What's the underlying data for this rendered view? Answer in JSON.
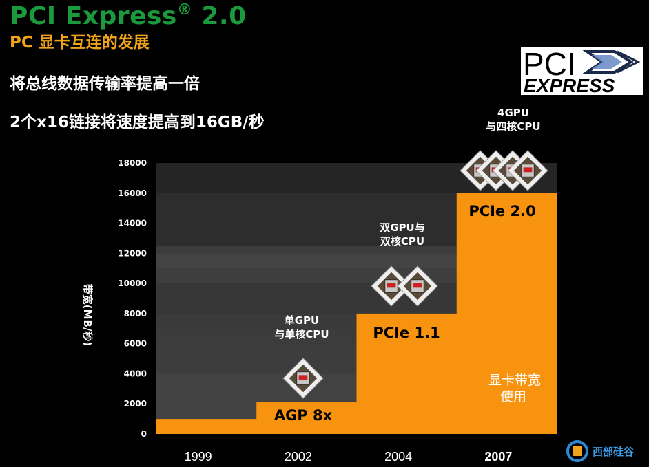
{
  "header": {
    "title": "PCI Express",
    "title_mark": "®",
    "title_version": " 2.0",
    "subtitle_prefix": "PC",
    "subtitle": " 显卡互连的发展",
    "bullet_1": "将总线数据传输率提高一倍",
    "bullet_2": "2个x16链接将速度提高到16GB/秒"
  },
  "logo": {
    "line1": "PCI",
    "line2": "EXPRESS",
    "icon": "pci-express-chevron-icon"
  },
  "watermark": {
    "text": "西部硅谷",
    "icon": "chip-logo-icon"
  },
  "colors": {
    "title": "#1a9a3c",
    "subtitle": "#f0a21a",
    "bar": "#f7930f",
    "background": "#000000"
  },
  "chart_data": {
    "type": "bar",
    "ylabel": "带宽(MB/秒)",
    "ylim": [
      0,
      18000
    ],
    "yticks": [
      0,
      2000,
      4000,
      6000,
      8000,
      10000,
      12000,
      14000,
      16000,
      18000
    ],
    "categories": [
      "1999",
      "2002",
      "2004",
      "2007"
    ],
    "highlight_category": "2007",
    "values": [
      1000,
      2100,
      8000,
      16000
    ],
    "bar_labels": [
      "",
      "AGP 8x",
      "PCIe 1.1",
      "PCIe 2.0"
    ],
    "annotations": [
      {
        "category": "2002",
        "lines": [
          "单GPU",
          "与单核CPU"
        ],
        "gpu_icons": 1
      },
      {
        "category": "2004",
        "lines": [
          "双GPU与",
          "双核CPU"
        ],
        "gpu_icons": 2
      },
      {
        "category": "2007",
        "lines": [
          "4GPU",
          "与四核CPU"
        ],
        "gpu_icons": 4
      }
    ],
    "usage_label": [
      "显卡带宽",
      "使用"
    ],
    "grid": true,
    "legend": "none"
  }
}
